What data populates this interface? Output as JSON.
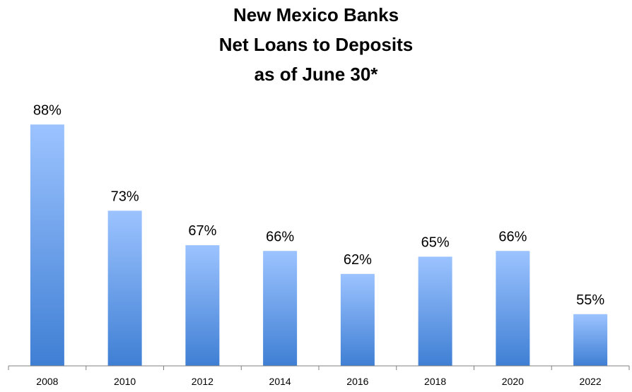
{
  "chart_data": {
    "type": "bar",
    "title_lines": [
      "New Mexico Banks",
      "Net Loans to Deposits",
      "as of June 30*"
    ],
    "categories": [
      "2008",
      "2010",
      "2012",
      "2014",
      "2016",
      "2018",
      "2020",
      "2022"
    ],
    "values": [
      88,
      73,
      67,
      66,
      62,
      65,
      66,
      55
    ],
    "value_labels": [
      "88%",
      "73%",
      "67%",
      "66%",
      "62%",
      "65%",
      "66%",
      "55%"
    ],
    "ylim": [
      46,
      90
    ],
    "grid": false,
    "bar_color_top": "#9cc3ff",
    "bar_color_bottom": "#3f7fd4",
    "axis_color": "#808080"
  }
}
